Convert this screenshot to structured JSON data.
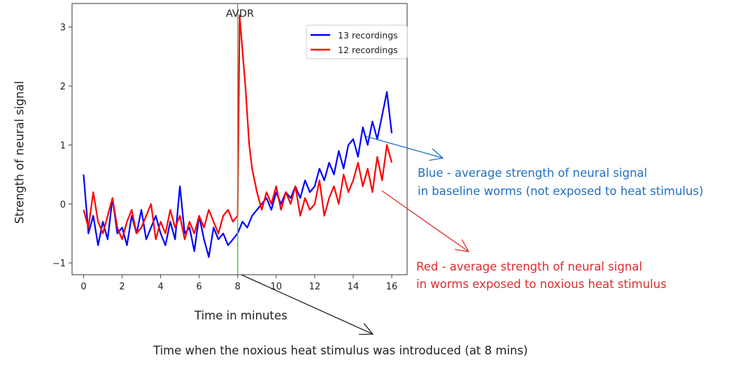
{
  "chart_data": {
    "type": "line",
    "title": "AVDR",
    "xlabel": "Time in minutes",
    "ylabel": "Strength of neural signal",
    "xlim": [
      -0.6,
      16.8
    ],
    "ylim": [
      -1.2,
      3.4
    ],
    "xticks": [
      0,
      2,
      4,
      6,
      8,
      10,
      12,
      14,
      16
    ],
    "xtick_labels": [
      "0",
      "2",
      "4",
      "6",
      "8",
      "10",
      "12",
      "14",
      "16"
    ],
    "yticks": [
      -1,
      0,
      1,
      2,
      3
    ],
    "ytick_labels": [
      "−1",
      "0",
      "1",
      "2",
      "3"
    ],
    "grid": false,
    "legend_position": "top-right",
    "vline": {
      "x": 8,
      "color": "#5cb85c"
    },
    "series": [
      {
        "name": "13 recordings",
        "color": "#0000ff",
        "x": [
          0,
          0.25,
          0.5,
          0.75,
          1,
          1.25,
          1.5,
          1.75,
          2,
          2.25,
          2.5,
          2.75,
          3,
          3.25,
          3.5,
          3.75,
          4,
          4.25,
          4.5,
          4.75,
          5,
          5.25,
          5.5,
          5.75,
          6,
          6.25,
          6.5,
          6.75,
          7,
          7.25,
          7.5,
          7.75,
          8,
          8.25,
          8.5,
          8.75,
          9,
          9.25,
          9.5,
          9.75,
          10,
          10.25,
          10.5,
          10.75,
          11,
          11.25,
          11.5,
          11.75,
          12,
          12.25,
          12.5,
          12.75,
          13,
          13.25,
          13.5,
          13.75,
          14,
          14.25,
          14.5,
          14.75,
          15,
          15.25,
          15.5,
          15.75,
          16
        ],
        "y": [
          0.5,
          -0.5,
          -0.2,
          -0.7,
          -0.3,
          -0.6,
          0.1,
          -0.5,
          -0.4,
          -0.7,
          -0.2,
          -0.5,
          -0.1,
          -0.6,
          -0.4,
          -0.2,
          -0.5,
          -0.7,
          -0.3,
          -0.6,
          0.3,
          -0.5,
          -0.4,
          -0.8,
          -0.2,
          -0.6,
          -0.9,
          -0.4,
          -0.6,
          -0.5,
          -0.7,
          -0.6,
          -0.5,
          -0.3,
          -0.4,
          -0.2,
          -0.1,
          0.0,
          0.1,
          -0.1,
          0.2,
          0.0,
          0.2,
          0.1,
          0.3,
          0.1,
          0.4,
          0.2,
          0.3,
          0.6,
          0.4,
          0.7,
          0.5,
          0.9,
          0.6,
          1.0,
          1.1,
          0.8,
          1.3,
          1.0,
          1.4,
          1.1,
          1.5,
          1.9,
          1.2
        ]
      },
      {
        "name": "12 recordings",
        "color": "#ff0000",
        "x": [
          0,
          0.25,
          0.5,
          0.75,
          1,
          1.25,
          1.5,
          1.75,
          2,
          2.25,
          2.5,
          2.75,
          3,
          3.25,
          3.5,
          3.75,
          4,
          4.25,
          4.5,
          4.75,
          5,
          5.25,
          5.5,
          5.75,
          6,
          6.25,
          6.5,
          6.75,
          7,
          7.25,
          7.5,
          7.75,
          8,
          8.1,
          8.25,
          8.4,
          8.5,
          8.6,
          8.75,
          9,
          9.25,
          9.5,
          9.75,
          10,
          10.25,
          10.5,
          10.75,
          11,
          11.25,
          11.5,
          11.75,
          12,
          12.25,
          12.5,
          12.75,
          13,
          13.25,
          13.5,
          13.75,
          14,
          14.25,
          14.5,
          14.75,
          15,
          15.25,
          15.5,
          15.75,
          16
        ],
        "y": [
          -0.1,
          -0.4,
          0.2,
          -0.3,
          -0.5,
          -0.2,
          0.1,
          -0.4,
          -0.6,
          -0.3,
          -0.1,
          -0.5,
          -0.4,
          -0.2,
          0.0,
          -0.6,
          -0.3,
          -0.5,
          -0.1,
          -0.4,
          -0.2,
          -0.6,
          -0.3,
          -0.5,
          -0.2,
          -0.4,
          -0.1,
          -0.3,
          -0.5,
          -0.2,
          -0.1,
          -0.3,
          -0.2,
          3.2,
          2.6,
          2.0,
          1.5,
          1.0,
          0.6,
          0.2,
          -0.1,
          0.2,
          0.0,
          0.3,
          -0.1,
          0.2,
          0.0,
          0.3,
          -0.2,
          0.1,
          -0.1,
          0.0,
          0.4,
          -0.2,
          0.1,
          0.3,
          0.0,
          0.5,
          0.2,
          0.4,
          0.7,
          0.3,
          0.6,
          0.2,
          0.8,
          0.4,
          1.0,
          0.7
        ]
      }
    ]
  },
  "annotations": {
    "blue_text_line1": "Blue - average strength of neural signal",
    "blue_text_line2": "in baseline worms (not exposed to heat stimulus)",
    "red_text_line1": "Red - average strength of neural signal",
    "red_text_line2": "in worms exposed to noxious heat stimulus",
    "stimulus_text": "Time when the noxious heat stimulus was introduced (at 8 mins)",
    "colors": {
      "blue": "#1f6fc4",
      "red": "#e02b2b",
      "black": "#222222"
    }
  }
}
